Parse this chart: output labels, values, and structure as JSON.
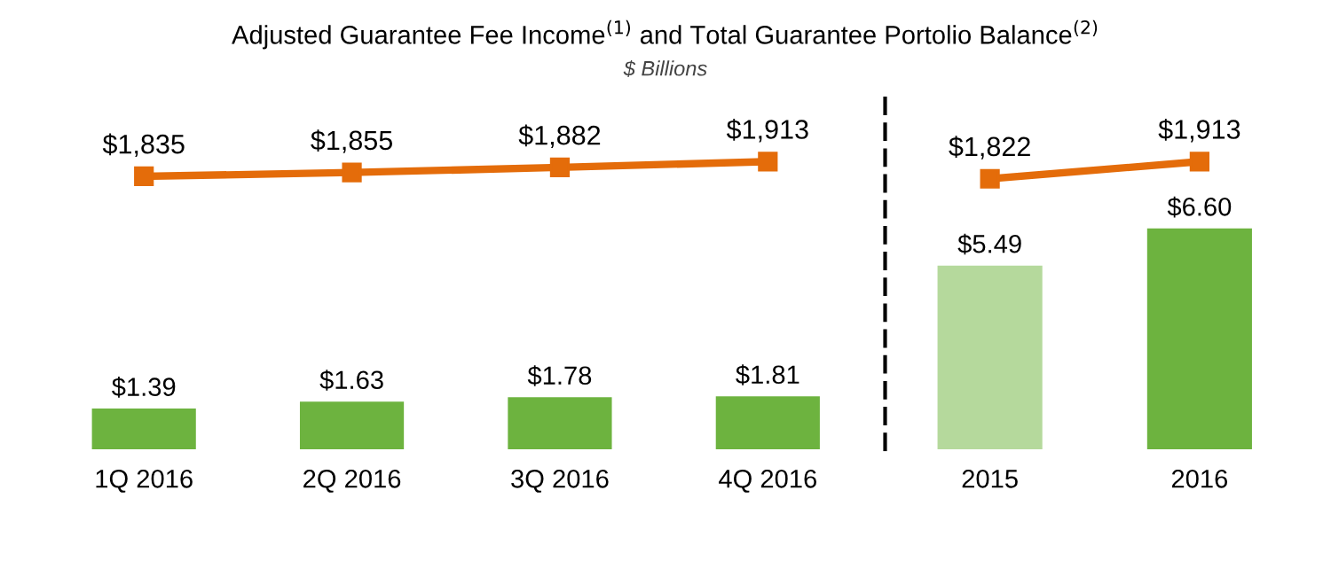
{
  "chart_data": [
    {
      "type": "bar",
      "title": "Adjusted Guarantee Fee Income$^{(1)}$ and Total Guarantee Portolio Balance$^{(2)}$",
      "subtitle": "$ Billions",
      "categories": [
        "1Q 2016",
        "2Q 2016",
        "3Q 2016",
        "4Q 2016"
      ],
      "series": [
        {
          "color": "#6db33f",
          "values": [
            1.39,
            1.63,
            1.78,
            1.81
          ],
          "value_labels": [
            "$1.39",
            "$1.63",
            "$1.78",
            "$1.81"
          ]
        },
        {
          "type": "line",
          "axis": "y2",
          "color": "#e46c0a",
          "marker": "square",
          "values": [
            1835,
            1855,
            1882,
            1913
          ],
          "value_labels": [
            "$1,835",
            "$1,855",
            "$1,882",
            "$1,913"
          ]
        }
      ],
      "ylim": [
        0,
        12
      ],
      "y2lim": [
        390,
        2250
      ],
      "tick_labels": "x",
      "legend": false,
      "grid": false
    },
    {
      "type": "bar",
      "categories": [
        "2015",
        "2016"
      ],
      "series": [
        {
          "colors": [
            "#b5d99c",
            "#6db33f"
          ],
          "values": [
            5.49,
            6.6
          ],
          "value_labels": [
            "$5.49",
            "$6.60"
          ]
        },
        {
          "type": "line",
          "axis": "y2",
          "color": "#e46c0a",
          "marker": "square",
          "values": [
            1822,
            1913
          ],
          "value_labels": [
            "$1,822",
            "$1,913"
          ]
        }
      ],
      "ylim": [
        0,
        10.5
      ],
      "y2lim": [
        390,
        2250
      ],
      "tick_labels": "x",
      "legend": false,
      "grid": false
    }
  ]
}
